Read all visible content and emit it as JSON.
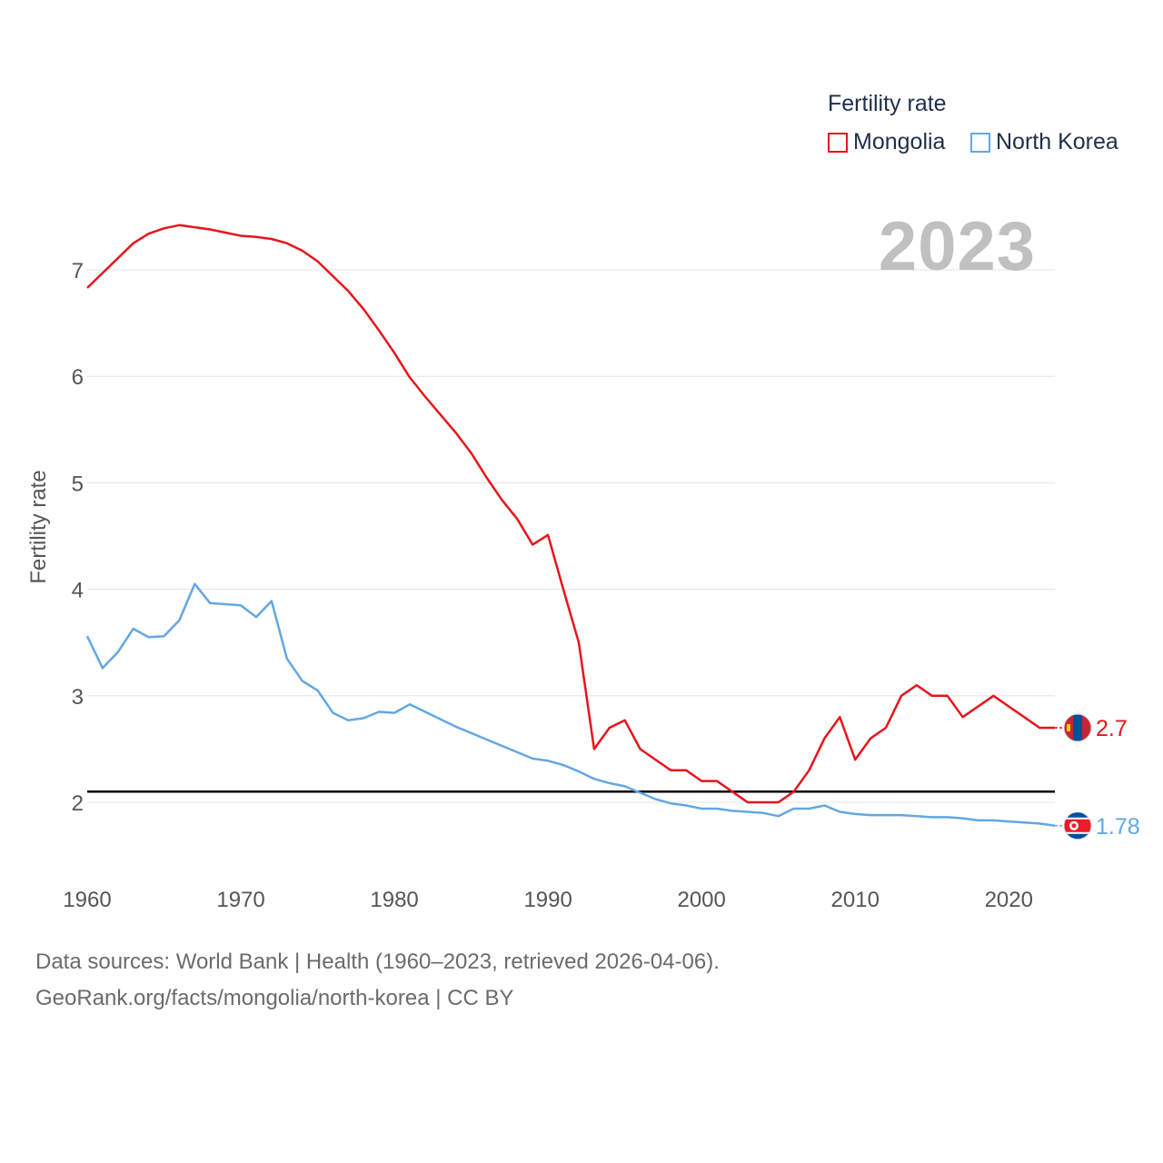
{
  "chart_data": {
    "type": "line",
    "title": "Fertility rate",
    "ylabel": "Fertility rate",
    "xlabel": "",
    "xlim": [
      1960,
      2023
    ],
    "ylim": [
      1.5,
      7.6
    ],
    "x_ticks": [
      1960,
      1970,
      1980,
      1990,
      2000,
      2010,
      2020
    ],
    "y_ticks": [
      2,
      3,
      4,
      5,
      6,
      7
    ],
    "reference_line": 2.1,
    "year_display": "2023",
    "series": [
      {
        "name": "Mongolia",
        "color": "#e8141a",
        "end_label": "2.7",
        "x": [
          1960,
          1961,
          1962,
          1963,
          1964,
          1965,
          1966,
          1967,
          1968,
          1969,
          1970,
          1971,
          1972,
          1973,
          1974,
          1975,
          1976,
          1977,
          1978,
          1979,
          1980,
          1981,
          1982,
          1983,
          1984,
          1985,
          1986,
          1987,
          1988,
          1989,
          1990,
          1991,
          1992,
          1993,
          1994,
          1995,
          1996,
          1997,
          1998,
          1999,
          2000,
          2001,
          2002,
          2003,
          2004,
          2005,
          2006,
          2007,
          2008,
          2009,
          2010,
          2011,
          2012,
          2013,
          2014,
          2015,
          2016,
          2017,
          2018,
          2019,
          2020,
          2021,
          2022,
          2023
        ],
        "values": [
          6.83,
          6.97,
          7.11,
          7.25,
          7.34,
          7.39,
          7.42,
          7.4,
          7.38,
          7.35,
          7.32,
          7.31,
          7.29,
          7.25,
          7.18,
          7.08,
          6.94,
          6.8,
          6.63,
          6.43,
          6.22,
          5.99,
          5.81,
          5.64,
          5.47,
          5.28,
          5.05,
          4.84,
          4.66,
          4.42,
          4.51,
          4.0,
          3.5,
          2.5,
          2.7,
          2.77,
          2.5,
          2.4,
          2.3,
          2.3,
          2.2,
          2.2,
          2.1,
          2.0,
          2.0,
          2.0,
          2.1,
          2.3,
          2.6,
          2.8,
          2.4,
          2.6,
          2.7,
          3.0,
          3.1,
          3.0,
          3.0,
          2.8,
          2.9,
          3.0,
          2.9,
          2.8,
          2.7,
          2.7
        ]
      },
      {
        "name": "North Korea",
        "color": "#63a7e3",
        "end_label": "1.78",
        "x": [
          1960,
          1961,
          1962,
          1963,
          1964,
          1965,
          1966,
          1967,
          1968,
          1969,
          1970,
          1971,
          1972,
          1973,
          1974,
          1975,
          1976,
          1977,
          1978,
          1979,
          1980,
          1981,
          1982,
          1983,
          1984,
          1985,
          1986,
          1987,
          1988,
          1989,
          1990,
          1991,
          1992,
          1993,
          1994,
          1995,
          1996,
          1997,
          1998,
          1999,
          2000,
          2001,
          2002,
          2003,
          2004,
          2005,
          2006,
          2007,
          2008,
          2009,
          2010,
          2011,
          2012,
          2013,
          2014,
          2015,
          2016,
          2017,
          2018,
          2019,
          2020,
          2021,
          2022,
          2023
        ],
        "values": [
          3.56,
          3.26,
          3.41,
          3.63,
          3.55,
          3.56,
          3.71,
          4.05,
          3.87,
          3.86,
          3.85,
          3.74,
          3.89,
          3.35,
          3.14,
          3.05,
          2.84,
          2.77,
          2.79,
          2.85,
          2.84,
          2.92,
          2.85,
          2.78,
          2.71,
          2.65,
          2.59,
          2.53,
          2.47,
          2.41,
          2.39,
          2.35,
          2.29,
          2.22,
          2.18,
          2.15,
          2.09,
          2.03,
          1.99,
          1.97,
          1.94,
          1.94,
          1.92,
          1.91,
          1.9,
          1.87,
          1.94,
          1.94,
          1.97,
          1.91,
          1.89,
          1.88,
          1.88,
          1.88,
          1.87,
          1.86,
          1.86,
          1.85,
          1.83,
          1.83,
          1.82,
          1.81,
          1.8,
          1.78
        ]
      }
    ]
  },
  "legend": {
    "title": "Fertility rate",
    "items": [
      {
        "label": "Mongolia"
      },
      {
        "label": "North Korea"
      }
    ]
  },
  "source": {
    "line1": "Data sources: World Bank | Health (1960–2023, retrieved 2026-04-06).",
    "line2": "GeoRank.org/facts/mongolia/north-korea | CC BY"
  },
  "flags": {
    "mongolia": "mongolia-flag-icon",
    "north_korea": "north-korea-flag-icon"
  }
}
